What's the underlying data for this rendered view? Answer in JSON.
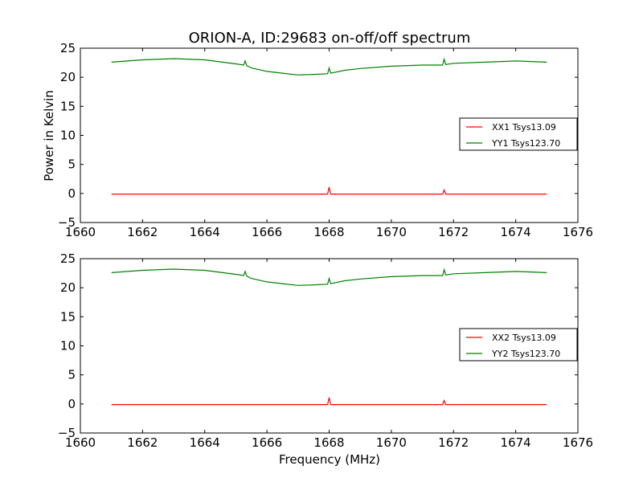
{
  "colors": {
    "xx": "#ff0000",
    "yy": "#008000"
  },
  "chart_data": [
    {
      "type": "line",
      "title": "ORION-A, ID:29683 on-off/off spectrum",
      "xlabel": "",
      "ylabel": "Power in Kelvin",
      "xlim": [
        1660,
        1676
      ],
      "ylim": [
        -5,
        25
      ],
      "xticks": [
        "1660",
        "1662",
        "1664",
        "1666",
        "1668",
        "1670",
        "1672",
        "1674",
        "1676"
      ],
      "yticks": [
        "−5",
        "0",
        "5",
        "10",
        "15",
        "20",
        "25"
      ],
      "legend_position": "center-right",
      "series": [
        {
          "name": "XX1 Tsys13.09",
          "color": "#ff0000",
          "x": [
            1661.0,
            1663.0,
            1665.0,
            1667.0,
            1667.95,
            1668.0,
            1668.05,
            1670.0,
            1671.65,
            1671.7,
            1671.75,
            1673.0,
            1675.0
          ],
          "y": [
            -0.1,
            -0.1,
            -0.1,
            -0.1,
            -0.1,
            1.1,
            -0.1,
            -0.1,
            -0.1,
            0.6,
            -0.1,
            -0.1,
            -0.1
          ]
        },
        {
          "name": "YY1 Tsys123.70",
          "color": "#008000",
          "x": [
            1661.0,
            1662.0,
            1663.0,
            1664.0,
            1665.0,
            1665.25,
            1665.3,
            1665.35,
            1665.5,
            1666.0,
            1666.5,
            1667.0,
            1667.5,
            1667.95,
            1668.0,
            1668.05,
            1668.5,
            1669.0,
            1670.0,
            1671.0,
            1671.65,
            1671.7,
            1671.75,
            1672.0,
            1673.0,
            1674.0,
            1675.0
          ],
          "y": [
            22.6,
            23.0,
            23.2,
            23.0,
            22.3,
            22.1,
            22.8,
            22.0,
            21.6,
            21.0,
            20.7,
            20.4,
            20.5,
            20.6,
            21.6,
            20.7,
            21.2,
            21.5,
            21.9,
            22.1,
            22.1,
            23.1,
            22.2,
            22.4,
            22.6,
            22.8,
            22.6
          ]
        }
      ]
    },
    {
      "type": "line",
      "title": "",
      "xlabel": "Frequency (MHz)",
      "ylabel": "",
      "xlim": [
        1660,
        1676
      ],
      "ylim": [
        -5,
        25
      ],
      "xticks": [
        "1660",
        "1662",
        "1664",
        "1666",
        "1668",
        "1670",
        "1672",
        "1674",
        "1676"
      ],
      "yticks": [
        "−5",
        "0",
        "5",
        "10",
        "15",
        "20",
        "25"
      ],
      "legend_position": "center-right",
      "series": [
        {
          "name": "XX2 Tsys13.09",
          "color": "#ff0000",
          "x": [
            1661.0,
            1663.0,
            1665.0,
            1667.0,
            1667.95,
            1668.0,
            1668.05,
            1670.0,
            1671.65,
            1671.7,
            1671.75,
            1673.0,
            1675.0
          ],
          "y": [
            -0.1,
            -0.1,
            -0.1,
            -0.1,
            -0.1,
            1.1,
            -0.1,
            -0.1,
            -0.1,
            0.6,
            -0.1,
            -0.1,
            -0.1
          ]
        },
        {
          "name": "YY2 Tsys123.70",
          "color": "#008000",
          "x": [
            1661.0,
            1662.0,
            1663.0,
            1664.0,
            1665.0,
            1665.25,
            1665.3,
            1665.35,
            1665.5,
            1666.0,
            1666.5,
            1667.0,
            1667.5,
            1667.95,
            1668.0,
            1668.05,
            1668.5,
            1669.0,
            1670.0,
            1671.0,
            1671.65,
            1671.7,
            1671.75,
            1672.0,
            1673.0,
            1674.0,
            1675.0
          ],
          "y": [
            22.6,
            23.0,
            23.2,
            23.0,
            22.3,
            22.1,
            22.8,
            22.0,
            21.6,
            21.0,
            20.7,
            20.4,
            20.5,
            20.6,
            21.6,
            20.7,
            21.2,
            21.5,
            21.9,
            22.1,
            22.1,
            23.1,
            22.2,
            22.4,
            22.6,
            22.8,
            22.6
          ]
        }
      ]
    }
  ]
}
